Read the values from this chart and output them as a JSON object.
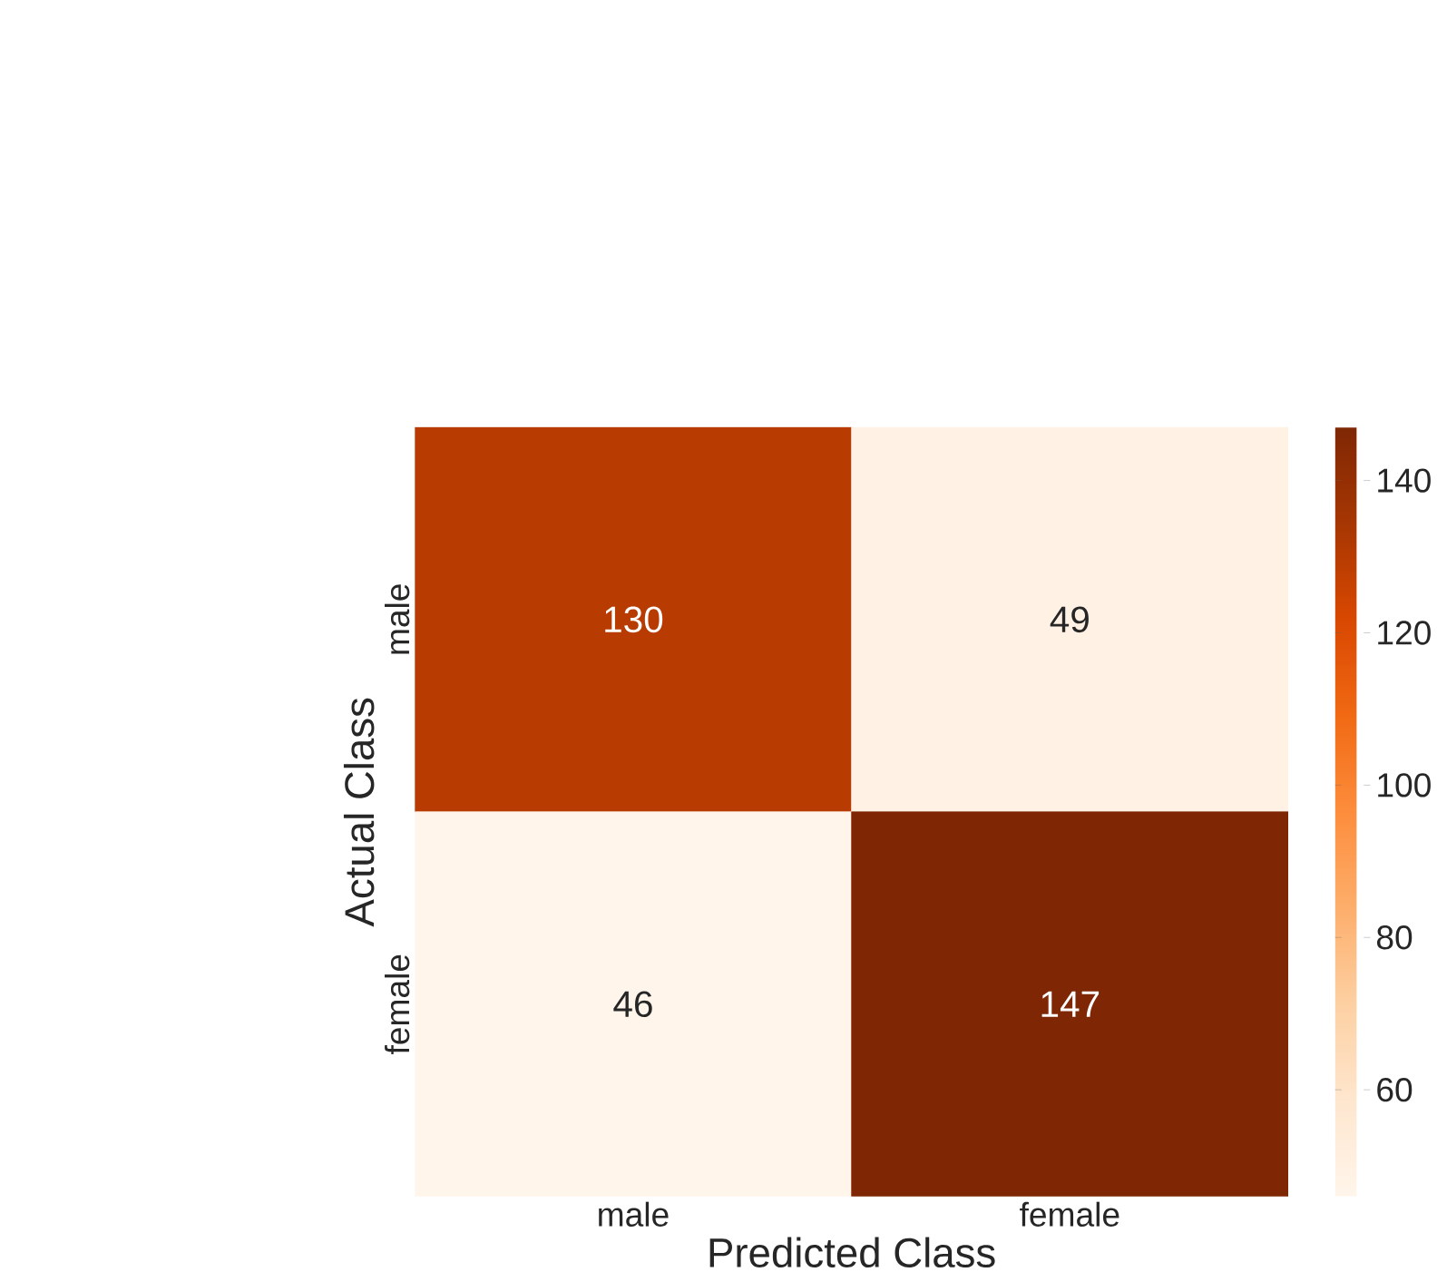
{
  "chart_data": {
    "type": "heatmap",
    "xlabel": "Predicted Class",
    "ylabel": "Actual Class",
    "categories": [
      "male",
      "female"
    ],
    "y_categories": [
      "male",
      "female"
    ],
    "cells": [
      [
        130,
        49
      ],
      [
        46,
        147
      ]
    ],
    "data_labels": true,
    "clim": [
      46,
      147
    ],
    "cticks": [
      60,
      80,
      100,
      120,
      140
    ]
  }
}
